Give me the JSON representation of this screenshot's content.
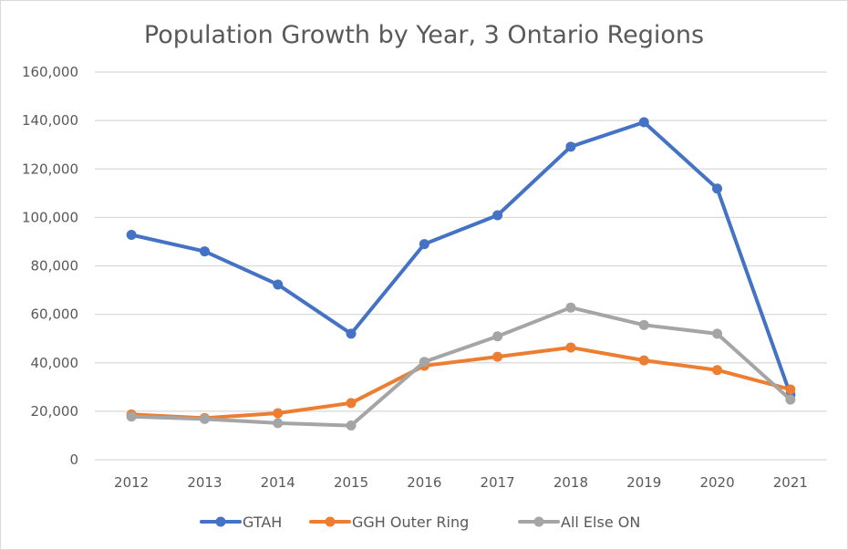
{
  "chart_data": {
    "type": "line",
    "title": "Population Growth by Year, 3 Ontario Regions",
    "xlabel": "",
    "ylabel": "",
    "categories": [
      "2012",
      "2013",
      "2014",
      "2015",
      "2016",
      "2017",
      "2018",
      "2019",
      "2020",
      "2021"
    ],
    "ylim": [
      0,
      160000
    ],
    "yticks": [
      0,
      20000,
      40000,
      60000,
      80000,
      100000,
      120000,
      140000,
      160000
    ],
    "ytick_labels": [
      "0",
      "20,000",
      "40,000",
      "60,000",
      "80,000",
      "100,000",
      "120,000",
      "140,000",
      "160,000"
    ],
    "grid": true,
    "legend_position": "bottom",
    "series": [
      {
        "name": "GTAH",
        "color": "#4472c4",
        "values": [
          92800,
          86000,
          72300,
          52000,
          89000,
          100900,
          129200,
          139300,
          111900,
          26800
        ]
      },
      {
        "name": "GGH Outer Ring",
        "color": "#ed7d31",
        "values": [
          18700,
          17200,
          19200,
          23400,
          38800,
          42500,
          46300,
          41000,
          37000,
          29000
        ]
      },
      {
        "name": "All Else ON",
        "color": "#a5a5a5",
        "values": [
          17800,
          16800,
          15100,
          14100,
          40400,
          50900,
          62800,
          55600,
          52000,
          24800
        ]
      }
    ]
  }
}
